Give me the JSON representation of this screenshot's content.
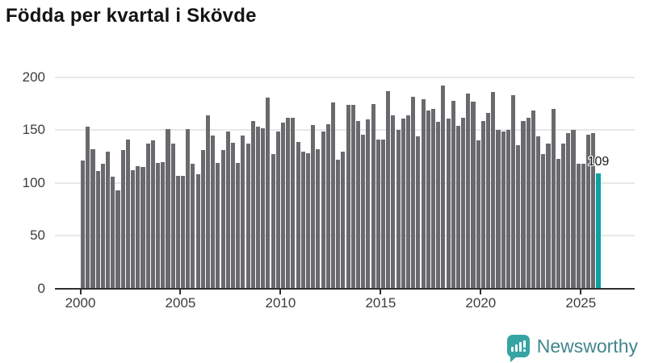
{
  "title": "Födda per kvartal i Skövde",
  "chart_data": {
    "type": "bar",
    "title": "Födda per kvartal i Skövde",
    "x": [
      "2000-Q1",
      "2000-Q2",
      "2000-Q3",
      "2000-Q4",
      "2001-Q1",
      "2001-Q2",
      "2001-Q3",
      "2001-Q4",
      "2002-Q1",
      "2002-Q2",
      "2002-Q3",
      "2002-Q4",
      "2003-Q1",
      "2003-Q2",
      "2003-Q3",
      "2003-Q4",
      "2004-Q1",
      "2004-Q2",
      "2004-Q3",
      "2004-Q4",
      "2005-Q1",
      "2005-Q2",
      "2005-Q3",
      "2005-Q4",
      "2006-Q1",
      "2006-Q2",
      "2006-Q3",
      "2006-Q4",
      "2007-Q1",
      "2007-Q2",
      "2007-Q3",
      "2007-Q4",
      "2008-Q1",
      "2008-Q2",
      "2008-Q3",
      "2008-Q4",
      "2009-Q1",
      "2009-Q2",
      "2009-Q3",
      "2009-Q4",
      "2010-Q1",
      "2010-Q2",
      "2010-Q3",
      "2010-Q4",
      "2011-Q1",
      "2011-Q2",
      "2011-Q3",
      "2011-Q4",
      "2012-Q1",
      "2012-Q2",
      "2012-Q3",
      "2012-Q4",
      "2013-Q1",
      "2013-Q2",
      "2013-Q3",
      "2013-Q4",
      "2014-Q1",
      "2014-Q2",
      "2014-Q3",
      "2014-Q4",
      "2015-Q1",
      "2015-Q2",
      "2015-Q3",
      "2015-Q4",
      "2016-Q1",
      "2016-Q2",
      "2016-Q3",
      "2016-Q4",
      "2017-Q1",
      "2017-Q2",
      "2017-Q3",
      "2017-Q4",
      "2018-Q1",
      "2018-Q2",
      "2018-Q3",
      "2018-Q4",
      "2019-Q1",
      "2019-Q2",
      "2019-Q3",
      "2019-Q4",
      "2020-Q1",
      "2020-Q2",
      "2020-Q3",
      "2020-Q4",
      "2021-Q1",
      "2021-Q2",
      "2021-Q3",
      "2021-Q4",
      "2022-Q1",
      "2022-Q2",
      "2022-Q3",
      "2022-Q4",
      "2023-Q1",
      "2023-Q2",
      "2023-Q3",
      "2023-Q4",
      "2024-Q1",
      "2024-Q2",
      "2024-Q3",
      "2024-Q4",
      "2025-Q1",
      "2025-Q2",
      "2025-Q3",
      "2025-Q4"
    ],
    "values": [
      121,
      153,
      132,
      111,
      118,
      130,
      106,
      93,
      131,
      141,
      112,
      116,
      115,
      137,
      140,
      119,
      120,
      151,
      137,
      107,
      107,
      151,
      118,
      108,
      131,
      164,
      145,
      119,
      131,
      149,
      138,
      119,
      145,
      137,
      159,
      153,
      152,
      181,
      127,
      149,
      157,
      162,
      162,
      139,
      130,
      128,
      155,
      132,
      149,
      156,
      176,
      122,
      130,
      174,
      174,
      159,
      146,
      160,
      175,
      141,
      141,
      187,
      164,
      150,
      161,
      164,
      182,
      144,
      179,
      169,
      170,
      158,
      192,
      161,
      178,
      154,
      162,
      185,
      177,
      140,
      159,
      166,
      186,
      150,
      149,
      150,
      183,
      136,
      159,
      162,
      169,
      144,
      127,
      137,
      170,
      123,
      137,
      147,
      150,
      118,
      118,
      146,
      147,
      109
    ],
    "highlight": {
      "index": 103,
      "label": "109",
      "color": "#0aa2a2"
    },
    "bar_color": "#6a6a6e",
    "xticks": [
      "2000",
      "2005",
      "2010",
      "2015",
      "2020",
      "2025"
    ],
    "yticks": [
      0,
      50,
      100,
      150,
      200
    ],
    "ylim": [
      0,
      200
    ],
    "grid": true,
    "legend": "none"
  },
  "colors": {
    "accent_teal": "#0aa2a2",
    "bar_gray": "#6a6a6e",
    "gridline": "#e7e7e7",
    "axis": "#303030",
    "tick_text": "#3d3d3d"
  },
  "branding": {
    "logo_text": "Newsworthy",
    "logo_icon": "newsworthy-speech-bubble-chart-icon",
    "logo_color": "#36a4a3"
  }
}
